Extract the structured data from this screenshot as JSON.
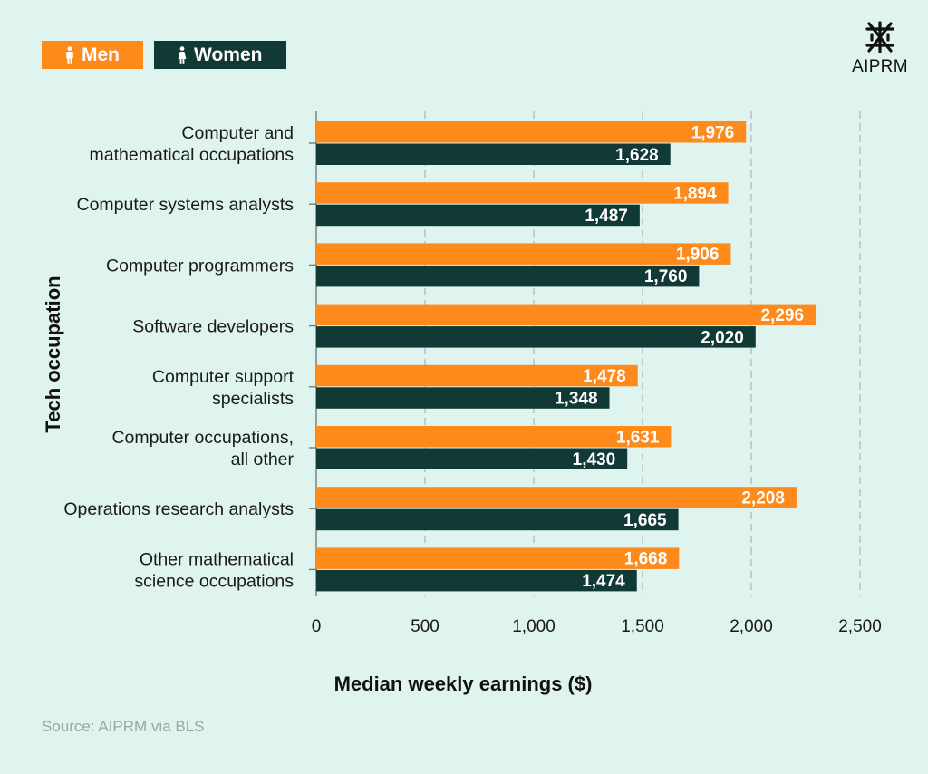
{
  "legend": {
    "men_label": "Men",
    "women_label": "Women"
  },
  "logo": {
    "text": "AIPRM"
  },
  "source": "Source: AIPRM via BLS",
  "colors": {
    "men": "#fe8a1c",
    "women": "#113a37",
    "background": "#dff3ef"
  },
  "chart_data": {
    "type": "bar",
    "orientation": "horizontal",
    "title": "",
    "xlabel": "Median weekly earnings  ($)",
    "ylabel": "Tech occupation",
    "xlim": [
      0,
      2500
    ],
    "xticks": [
      "0",
      "500",
      "1,000",
      "1,500",
      "2,000",
      "2,500"
    ],
    "grid": "vertical-dashed",
    "legend_position": "top-left",
    "categories": [
      [
        "Computer and",
        "mathematical occupations"
      ],
      [
        "Computer systems analysts"
      ],
      [
        "Computer programmers"
      ],
      [
        "Software developers"
      ],
      [
        "Computer support",
        "specialists"
      ],
      [
        "Computer occupations,",
        "all other"
      ],
      [
        "Operations research analysts"
      ],
      [
        "Other mathematical",
        "science occupations"
      ]
    ],
    "series": [
      {
        "name": "Men",
        "values": [
          1976,
          1894,
          1906,
          2296,
          1478,
          1631,
          2208,
          1668
        ],
        "labels": [
          "1,976",
          "1,894",
          "1,906",
          "2,296",
          "1,478",
          "1,631",
          "2,208",
          "1,668"
        ]
      },
      {
        "name": "Women",
        "values": [
          1628,
          1487,
          1760,
          2020,
          1348,
          1430,
          1665,
          1474
        ],
        "labels": [
          "1,628",
          "1,487",
          "1,760",
          "2,020",
          "1,348",
          "1,430",
          "1,665",
          "1,474"
        ]
      }
    ]
  }
}
